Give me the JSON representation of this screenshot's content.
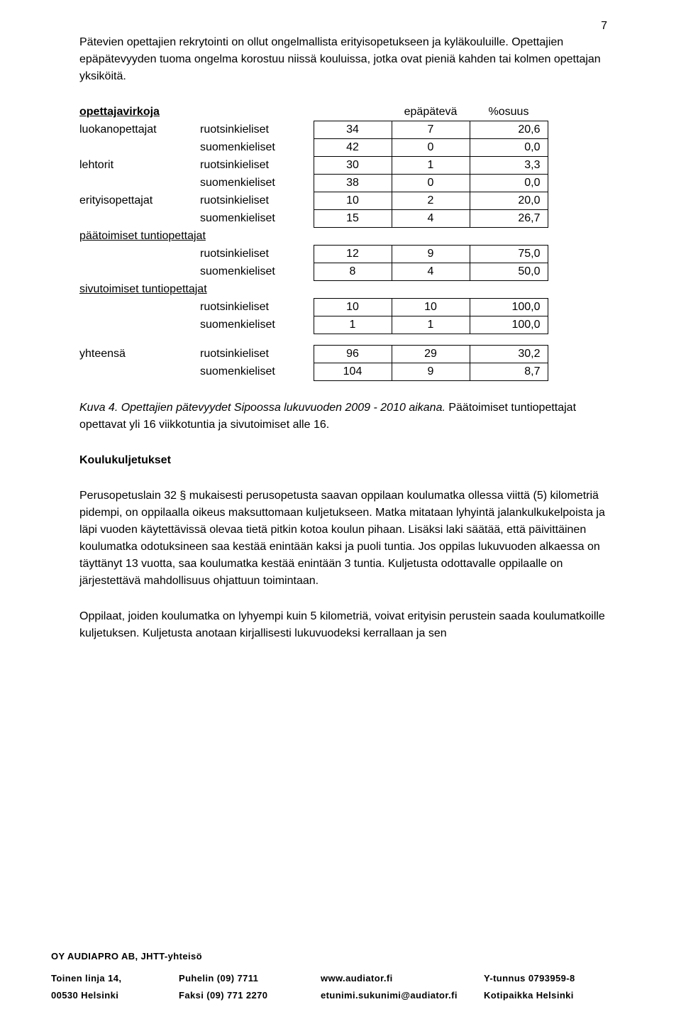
{
  "page_number": "7",
  "intro_paragraph": "Pätevien opettajien rekrytointi on ollut ongelmallista erityisopetukseen ja kyläkouluille. Opettajien epäpätevyyden tuoma ongelma korostuu niissä kouluissa, jotka ovat pieniä kahden tai kolmen opettajan yksiköitä.",
  "table": {
    "header_label": "opettajavirkoja",
    "col3": "",
    "col4": "epäpätevä",
    "col5": "%osuus",
    "groups": [
      {
        "label": "luokanopettajat",
        "label_bold": true,
        "label_underline": false,
        "rows": [
          {
            "lang": "ruotsinkieliset",
            "a": "34",
            "b": "7",
            "c": "20,6"
          },
          {
            "lang": "suomenkieliset",
            "a": "42",
            "b": "0",
            "c": "0,0"
          }
        ]
      },
      {
        "label": "lehtorit",
        "label_bold": true,
        "label_underline": false,
        "rows": [
          {
            "lang": "ruotsinkieliset",
            "a": "30",
            "b": "1",
            "c": "3,3"
          },
          {
            "lang": "suomenkieliset",
            "a": "38",
            "b": "0",
            "c": "0,0"
          }
        ]
      },
      {
        "label": "erityisopettajat",
        "label_bold": true,
        "label_underline": false,
        "rows": [
          {
            "lang": "ruotsinkieliset",
            "a": "10",
            "b": "2",
            "c": "20,0"
          },
          {
            "lang": "suomenkieliset",
            "a": "15",
            "b": "4",
            "c": "26,7"
          }
        ]
      },
      {
        "label": "päätoimiset tuntiopettajat",
        "label_bold": true,
        "label_underline": true,
        "span": true,
        "rows": [
          {
            "lang": "ruotsinkieliset",
            "a": "12",
            "b": "9",
            "c": "75,0"
          },
          {
            "lang": "suomenkieliset",
            "a": "8",
            "b": "4",
            "c": "50,0"
          }
        ]
      },
      {
        "label": "sivutoimiset tuntiopettajat",
        "label_bold": true,
        "label_underline": true,
        "span": true,
        "rows": [
          {
            "lang": "ruotsinkieliset",
            "a": "10",
            "b": "10",
            "c": "100,0"
          },
          {
            "lang": "suomenkieliset",
            "a": "1",
            "b": "1",
            "c": "100,0"
          }
        ]
      }
    ],
    "totals": {
      "label": "yhteensä",
      "rows": [
        {
          "lang": "ruotsinkieliset",
          "a": "96",
          "b": "29",
          "c": "30,2"
        },
        {
          "lang": "suomenkieliset",
          "a": "104",
          "b": "9",
          "c": "8,7"
        }
      ]
    }
  },
  "caption_italic_prefix": "Kuva 4. Opettajien pätevyydet Sipoossa lukuvuoden 2009 - 2010 aikana. ",
  "caption_rest": "Päätoimiset tuntiopettajat opettavat yli 16 viikkotuntia ja sivutoimiset alle 16.",
  "section_heading": "Koulukuljetukset",
  "para_transport_1": "Perusopetuslain 32 § mukaisesti perusopetusta saavan oppilaan koulumatka ollessa viittä (5) kilometriä pidempi, on oppilaalla oikeus maksuttomaan kuljetukseen. Matka mitataan lyhyintä jalankulkukelpoista ja läpi vuoden käytettävissä olevaa tietä pitkin kotoa koulun pihaan. Lisäksi laki säätää, että päivittäinen koulumatka odotuksineen saa kestää enintään kaksi ja puoli tuntia. Jos oppilas lukuvuoden alkaessa on täyttänyt 13 vuotta, saa koulumatka kestää enintään 3 tuntia. Kuljetusta odottavalle oppilaalle on järjestettävä mahdollisuus ohjattuun toimintaan.",
  "para_transport_2": "Oppilaat, joiden koulumatka on lyhyempi kuin 5 kilometriä, voivat erityisin perustein saada koulumatkoille kuljetuksen. Kuljetusta anotaan kirjallisesti lukuvuodeksi kerrallaan ja sen",
  "footer": {
    "org": "OY AUDIAPRO AB, JHTT-yhteisö",
    "row1": {
      "c1": "Toinen linja 14,",
      "c2": "Puhelin (09) 7711",
      "c3": "www.audiator.fi",
      "c4": "Y-tunnus   0793959-8"
    },
    "row2": {
      "c1": "00530 Helsinki",
      "c2": "Faksi (09) 771 2270",
      "c3": "etunimi.sukunimi@audiator.fi",
      "c4": "Kotipaikka Helsinki"
    }
  }
}
